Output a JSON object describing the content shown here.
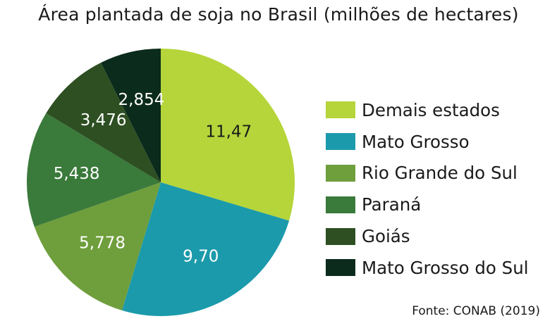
{
  "chart_data": {
    "type": "pie",
    "title": "Área plantada de soja no Brasil (milhões de hectares)",
    "categories": [
      "Demais estados",
      "Mato Grosso",
      "Rio Grande do Sul",
      "Paraná",
      "Goiás",
      "Mato Grosso do Sul"
    ],
    "values": [
      11.47,
      9.7,
      5.778,
      5.438,
      3.476,
      2.854
    ],
    "data_labels": [
      "11,47",
      "9,70",
      "5,778",
      "5,438",
      "3,476",
      "2,854"
    ],
    "colors": [
      "#b5d53a",
      "#1b9aab",
      "#6f9e3c",
      "#3a7a3b",
      "#2d4f22",
      "#0b2b1c"
    ],
    "label_colors": [
      "#1a1a1a",
      "#ffffff",
      "#ffffff",
      "#ffffff",
      "#ffffff",
      "#ffffff"
    ],
    "start": "12 o'clock",
    "direction": "clockwise",
    "legend_position": "right",
    "source": "Fonte: CONAB (2019)"
  }
}
